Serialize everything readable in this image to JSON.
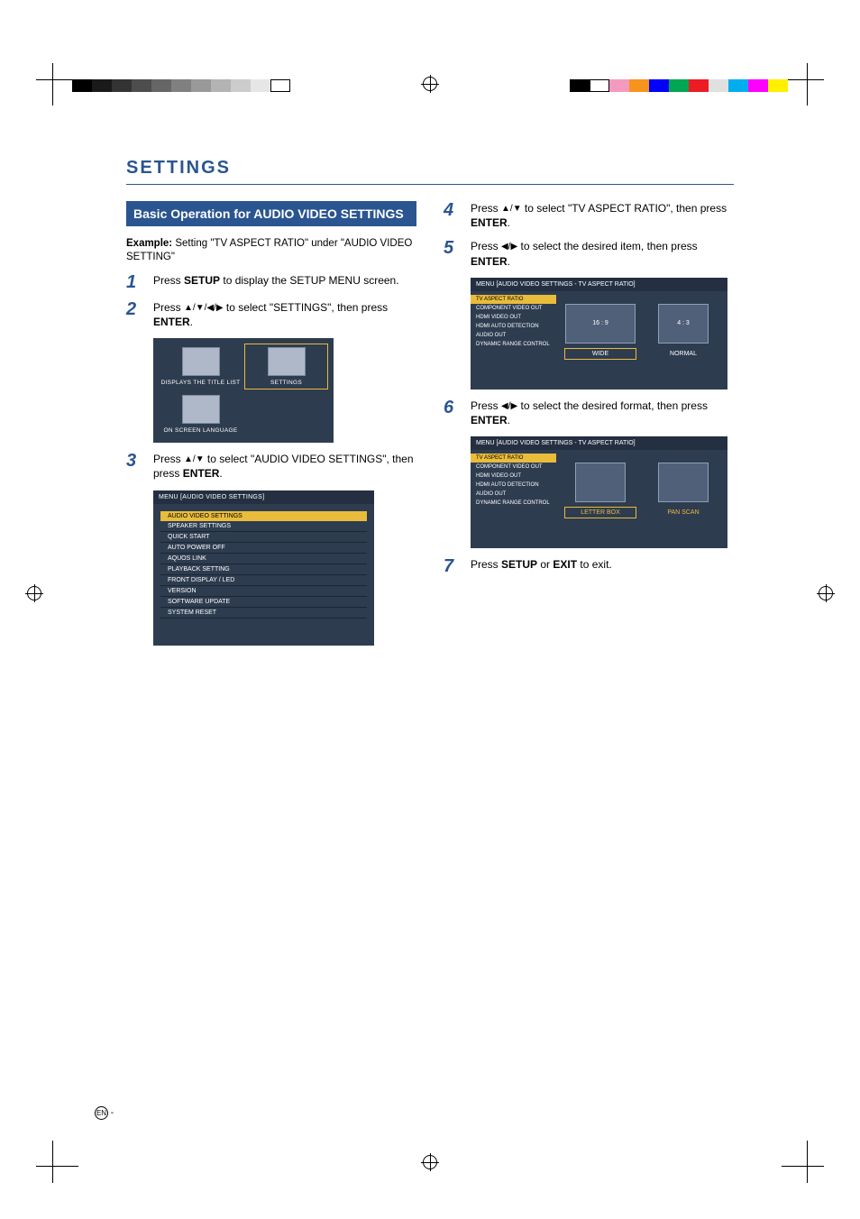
{
  "colors": {
    "brand_blue": "#2a5590",
    "menu_bg": "#2e3c50",
    "menu_bar": "#243042",
    "highlight": "#e9bc3b",
    "preview_fill": "#516079",
    "gray_bars": [
      "#000000",
      "#1a1a1a",
      "#333333",
      "#4d4d4d",
      "#666666",
      "#808080",
      "#999999",
      "#b3b3b3",
      "#cccccc",
      "#e6e6e6",
      "#ffffff"
    ],
    "color_bars": [
      "#fff000",
      "#ff00ff",
      "#00aeef",
      "#e0e0e0",
      "#ed1c24",
      "#00a651",
      "#0000ff",
      "#f7941d",
      "#f49ac1",
      "#ffffff",
      "#000000"
    ]
  },
  "heading": "SETTINGS",
  "sub_heading": "Basic Operation for AUDIO VIDEO SETTINGS",
  "example": {
    "label": "Example:",
    "text": "Setting \"TV ASPECT RATIO\" under \"AUDIO VIDEO SETTING\""
  },
  "steps": {
    "1": {
      "pre": "Press ",
      "bold1": "SETUP",
      "post": " to display the SETUP MENU screen."
    },
    "2": {
      "t1": "Press ",
      "arrows": "▲/▼/◀/▶",
      "t2": " to select \"SETTINGS\", then press ",
      "bold": "ENTER",
      "t3": "."
    },
    "3": {
      "t1": "Press ",
      "arrows": "▲/▼",
      "t2": " to select \"AUDIO VIDEO SETTINGS\", then press ",
      "bold": "ENTER",
      "t3": "."
    },
    "4": {
      "t1": "Press ",
      "arrows": "▲/▼",
      "t2": " to select \"TV ASPECT RATIO\", then press ",
      "bold": "ENTER",
      "t3": "."
    },
    "5": {
      "t1": "Press ",
      "arrows": "◀/▶",
      "t2": " to select the desired item, then press ",
      "bold": "ENTER",
      "t3": "."
    },
    "6": {
      "t1": "Press ",
      "arrows": "◀/▶",
      "t2": " to select the desired format, then press ",
      "bold": "ENTER",
      "t3": "."
    },
    "7": {
      "t1": "Press ",
      "bold1": "SETUP",
      "t2": " or ",
      "bold2": "EXIT",
      "t3": " to exit."
    }
  },
  "settings_grid": {
    "items": [
      {
        "label": "DISPLAYS THE TITLE LIST",
        "selected": false
      },
      {
        "label": "SETTINGS",
        "selected": true
      },
      {
        "label": "ON SCREEN LANGUAGE",
        "selected": false
      }
    ]
  },
  "menu_box": {
    "title": "MENU    [AUDIO VIDEO SETTINGS]",
    "items": [
      {
        "label": "AUDIO VIDEO SETTINGS",
        "selected": true
      },
      {
        "label": "SPEAKER SETTINGS",
        "selected": false
      },
      {
        "label": "QUICK START",
        "selected": false
      },
      {
        "label": "AUTO POWER OFF",
        "selected": false
      },
      {
        "label": "AQUOS LINK",
        "selected": false
      },
      {
        "label": "PLAYBACK SETTING",
        "selected": false
      },
      {
        "label": "FRONT DISPLAY / LED",
        "selected": false
      },
      {
        "label": "VERSION",
        "selected": false
      },
      {
        "label": "SOFTWARE UPDATE",
        "selected": false
      },
      {
        "label": "SYSTEM RESET",
        "selected": false
      }
    ]
  },
  "aspect_box_5": {
    "title": "MENU    [AUDIO VIDEO SETTINGS  -  TV ASPECT RATIO]",
    "sidebar": [
      {
        "label": "TV ASPECT RATIO",
        "selected": true
      },
      {
        "label": "COMPONENT VIDEO OUT",
        "selected": false
      },
      {
        "label": "HDMI VIDEO OUT",
        "selected": false
      },
      {
        "label": "HDMI AUTO DETECTION",
        "selected": false
      },
      {
        "label": "AUDIO OUT",
        "selected": false
      },
      {
        "label": "DYNAMIC RANGE CONTROL",
        "selected": false
      }
    ],
    "options": [
      {
        "preview": "16 : 9",
        "label": "WIDE",
        "selected": true,
        "narrow": false
      },
      {
        "preview": "4 : 3",
        "label": "NORMAL",
        "selected": false,
        "narrow": true
      }
    ]
  },
  "aspect_box_6": {
    "title": "MENU    [AUDIO VIDEO SETTINGS  -  TV ASPECT RATIO]",
    "sidebar": [
      {
        "label": "TV ASPECT RATIO",
        "selected": true
      },
      {
        "label": "COMPONENT VIDEO OUT",
        "selected": false
      },
      {
        "label": "HDMI VIDEO OUT",
        "selected": false
      },
      {
        "label": "HDMI AUTO DETECTION",
        "selected": false
      },
      {
        "label": "AUDIO OUT",
        "selected": false
      },
      {
        "label": "DYNAMIC RANGE CONTROL",
        "selected": false
      }
    ],
    "options": [
      {
        "preview": "",
        "label": "LETTER BOX",
        "selected": true,
        "narrow": true
      },
      {
        "preview": "",
        "label": "PAN SCAN",
        "selected": false,
        "narrow": true
      }
    ]
  },
  "footer": {
    "lang": "EN",
    "sep": " - "
  }
}
